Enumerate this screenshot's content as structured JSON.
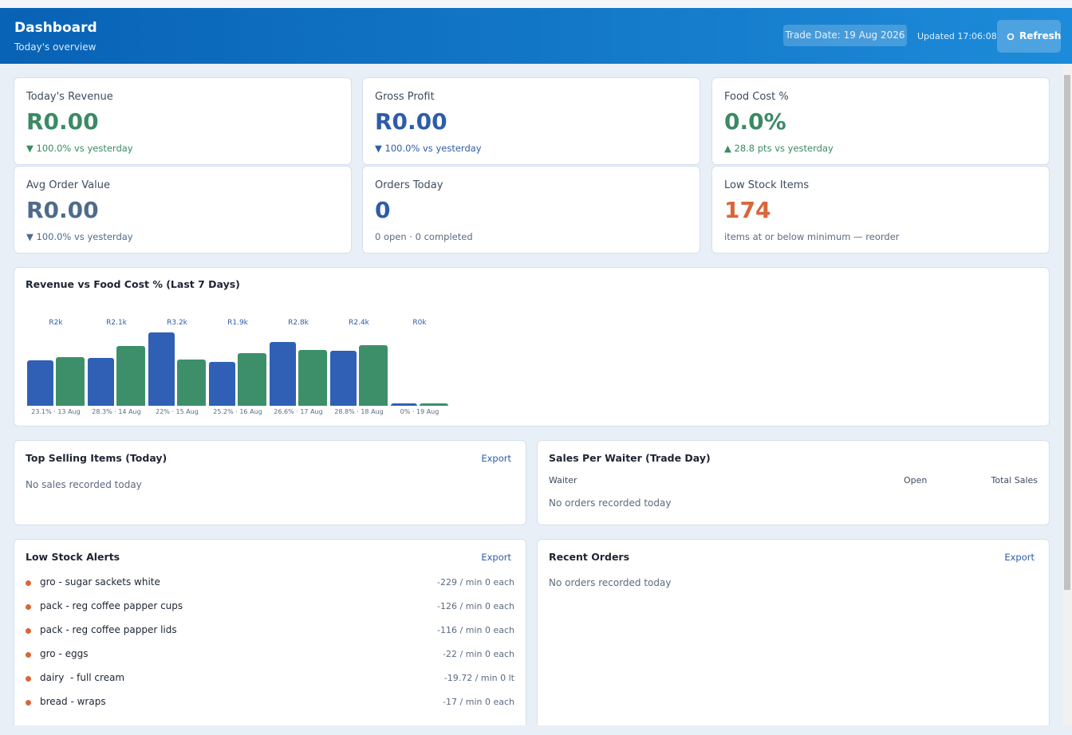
{
  "header": {
    "title": "Dashboard",
    "subtitle": "Today's overview",
    "trade_date": "Trade Date: 19 Aug 2026",
    "updated": "Updated 17:06:08",
    "refresh": "Refresh"
  },
  "kpis": [
    {
      "label": "Today's Revenue",
      "value": "R0.00",
      "note": "▼ 100.0% vs yesterday",
      "color": "#3b8a63"
    },
    {
      "label": "Gross Profit",
      "value": "R0.00",
      "note": "▼ 100.0% vs yesterday",
      "color": "#2e5ca8"
    },
    {
      "label": "Food Cost %",
      "value": "0.0%",
      "note": "▲ 28.8 pts vs yesterday",
      "color": "#3b8a63"
    },
    {
      "label": "Avg Order Value",
      "value": "R0.00",
      "note": "▼ 100.0% vs yesterday",
      "color": "#4f6b8a"
    },
    {
      "label": "Orders Today",
      "value": "0",
      "note": "0 open · 0 completed",
      "color": "#2e5ca8",
      "note_color": "#5a6b80"
    },
    {
      "label": "Low Stock Items",
      "value": "174",
      "note": "items at or below minimum — reorder",
      "color": "#d9663a",
      "note_color": "#5a6b80"
    }
  ],
  "revenue_chart": {
    "title": "Revenue vs Food Cost % (Last 7 Days)",
    "chart_data": {
      "type": "bar",
      "categories": [
        "23.1% · 13 Aug",
        "28.3% · 14 Aug",
        "22% · 15 Aug",
        "25.2% · 16 Aug",
        "26.6% · 17 Aug",
        "28.8% · 18 Aug",
        "0% · 19 Aug"
      ],
      "series": [
        {
          "color": "#3060b5",
          "values": [
            2000,
            2100,
            3200,
            1900,
            2800,
            2400,
            0
          ],
          "value_labels": [
            "R2k",
            "R2.1k",
            "R3.2k",
            "R1.9k",
            "R2.8k",
            "R2.4k",
            "R0k"
          ]
        },
        {
          "color": "#3d8f6a",
          "values": [
            23.1,
            28.3,
            22,
            25.2,
            26.6,
            28.8,
            0
          ]
        }
      ]
    }
  },
  "top_selling": {
    "title": "Top Selling Items (Today)",
    "export": "Export",
    "empty": "No sales recorded today"
  },
  "sales_per_waiter": {
    "title": "Sales Per Waiter (Trade Day)",
    "columns": [
      "Waiter",
      "Open",
      "Total Sales"
    ],
    "empty": "No orders recorded today"
  },
  "low_stock": {
    "title": "Low Stock Alerts",
    "export": "Export",
    "items": [
      {
        "name": "gro - sugar sackets white",
        "detail": "-229 / min 0 each"
      },
      {
        "name": "pack - reg coffee papper cups",
        "detail": "-126 / min 0 each"
      },
      {
        "name": "pack - reg coffee papper lids",
        "detail": "-116 / min 0 each"
      },
      {
        "name": "gro - eggs",
        "detail": "-22 / min 0 each"
      },
      {
        "name": "dairy  - full cream",
        "detail": "-19.72 / min 0 lt"
      },
      {
        "name": "bread - wraps",
        "detail": "-17 / min 0 each"
      }
    ]
  },
  "recent_orders": {
    "title": "Recent Orders",
    "export": "Export",
    "empty": "No orders recorded today"
  }
}
